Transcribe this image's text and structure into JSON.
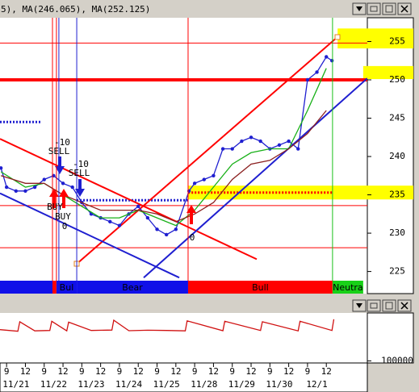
{
  "chart_data": [
    {
      "type": "line",
      "title": "5), MA(246.065), MA(252.125)",
      "xlim": [
        -0.35,
        19.18
      ],
      "ylim": [
        223.8,
        258.1
      ],
      "yticks": [
        225,
        230,
        235,
        240,
        245,
        250,
        255
      ],
      "xticks": [
        {
          "value": 0,
          "label": "9"
        },
        {
          "value": 1,
          "label": "12"
        },
        {
          "value": 2,
          "label": "9"
        },
        {
          "value": 3,
          "label": "12"
        },
        {
          "value": 4,
          "label": "9"
        },
        {
          "value": 5,
          "label": "12"
        },
        {
          "value": 6,
          "label": "9"
        },
        {
          "value": 7,
          "label": "12"
        },
        {
          "value": 8,
          "label": "9"
        },
        {
          "value": 9,
          "label": "12"
        },
        {
          "value": 10,
          "label": "9"
        },
        {
          "value": 11,
          "label": "12"
        },
        {
          "value": 12,
          "label": "9"
        },
        {
          "value": 13,
          "label": "12"
        },
        {
          "value": 14,
          "label": "9"
        },
        {
          "value": 15,
          "label": "12"
        },
        {
          "value": 16,
          "label": "9"
        },
        {
          "value": 17,
          "label": "12"
        }
      ],
      "date_ticks": [
        {
          "value": 0.5,
          "label": "11/21"
        },
        {
          "value": 2.5,
          "label": "11/22"
        },
        {
          "value": 4.5,
          "label": "11/23"
        },
        {
          "value": 6.5,
          "label": "11/24"
        },
        {
          "value": 8.5,
          "label": "11/25"
        },
        {
          "value": 10.5,
          "label": "11/28"
        },
        {
          "value": 12.5,
          "label": "11/29"
        },
        {
          "value": 14.5,
          "label": "11/30"
        },
        {
          "value": 16.5,
          "label": "12/1"
        }
      ],
      "series": [
        {
          "color": "#1f1fd0",
          "markers": true,
          "x": [
            -0.3,
            0,
            0.5,
            1,
            1.5,
            2,
            2.5,
            3,
            3.5,
            4,
            4.5,
            5,
            5.5,
            6,
            6.5,
            7,
            7.5,
            8,
            8.5,
            9,
            9.7,
            10,
            10.5,
            11,
            11.5,
            12,
            12.5,
            13,
            13.5,
            14,
            14.5,
            15,
            15.5,
            16,
            16.5,
            17,
            17.3
          ],
          "values": [
            238.5,
            236,
            235.5,
            235.5,
            236,
            237,
            237.5,
            236.5,
            236,
            234,
            232.5,
            232,
            231.5,
            231,
            232.5,
            233.5,
            232,
            230.5,
            229.8,
            230.5,
            235.5,
            236.5,
            237,
            237.5,
            241,
            241,
            242,
            242.5,
            242,
            241,
            241.5,
            242,
            241,
            250,
            251,
            253,
            252.5
          ]
        },
        {
          "color": "#18b018",
          "markers": false,
          "x": [
            -0.3,
            1,
            2,
            3,
            4,
            5,
            6,
            7,
            8,
            9,
            10,
            11,
            12,
            13,
            14,
            15,
            16,
            17
          ],
          "values": [
            238,
            236,
            236.5,
            235,
            233.5,
            232,
            232,
            233,
            232,
            231,
            233,
            236,
            239,
            240.5,
            241,
            241,
            246,
            251.5
          ]
        },
        {
          "color": "#8b2020",
          "markers": false,
          "x": [
            -0.3,
            1,
            2,
            3,
            4,
            5,
            6,
            7,
            8,
            9,
            10,
            11,
            12,
            13,
            14,
            15,
            16,
            17
          ],
          "values": [
            237.5,
            236.5,
            236.5,
            235,
            234,
            233,
            233,
            233,
            232.5,
            231.5,
            232.5,
            234,
            237,
            239,
            239.5,
            241,
            243,
            246
          ]
        }
      ],
      "bands": [
        {
          "x": 17.6,
          "values": [
            254.1,
            256.7
          ],
          "color": "#ffff00"
        },
        {
          "x": 18.96,
          "values": [
            250.1,
            251.8
          ],
          "color": "#ffff00"
        },
        {
          "x": 9.66,
          "values": [
            234.4,
            236.2
          ],
          "color": "#ffff00"
        }
      ],
      "hlines": [
        {
          "value": 254.8,
          "color": "#ff0000",
          "width": 1
        },
        {
          "value": 233.6,
          "color": "#ff0000",
          "width": 1
        },
        {
          "value": 228.1,
          "color": "#ff0000",
          "width": 1
        },
        {
          "value": 250,
          "color": "#ff0000",
          "width": 4
        }
      ],
      "dotted_lines": [
        {
          "x": [
            -0.35,
            1.8
          ],
          "value": 244.5,
          "color": "#1f1fd0"
        },
        {
          "x": [
            3.73,
            9.66
          ],
          "value": 234.3,
          "color": "#1f1fd0"
        },
        {
          "x": [
            9.66,
            17.3
          ],
          "value": 235.3,
          "color": "#ff0000"
        }
      ],
      "trendlines": [
        {
          "x": [
            -0.35,
            13.3
          ],
          "values": [
            242.3,
            226.6
          ],
          "color": "#ff0000"
        },
        {
          "x": [
            3.73,
            17.6
          ],
          "values": [
            226.0,
            255.6
          ],
          "color": "#ff0000"
        },
        {
          "x": [
            -0.35,
            9.18
          ],
          "values": [
            235.2,
            224.2
          ],
          "color": "#1f1fd0"
        },
        {
          "x": [
            7.29,
            19.18
          ],
          "values": [
            224.2,
            250.2
          ],
          "color": "#1f1fd0"
        }
      ],
      "vlines": [
        {
          "x": 2.44,
          "color": "#ff0000"
        },
        {
          "x": 2.65,
          "color": "#ff0000"
        },
        {
          "x": 2.78,
          "color": "#1f1fd0"
        },
        {
          "x": 3.73,
          "color": "#1f1fd0"
        },
        {
          "x": 9.65,
          "color": "#ff0000"
        },
        {
          "x": 17.33,
          "color": "#18c018"
        }
      ],
      "regimes": [
        {
          "x": [
            -0.35,
            2.44
          ],
          "color": "#1010e8"
        },
        {
          "x": [
            2.44,
            2.65
          ],
          "color": "#ff0000"
        },
        {
          "label": "Bul",
          "x": [
            2.65,
            3.73
          ],
          "color": "#1010e8"
        },
        {
          "label": "Bear",
          "x": [
            3.73,
            9.65
          ],
          "color": "#1010e8"
        },
        {
          "label": "Bull",
          "x": [
            9.65,
            17.33
          ],
          "color": "#ff0000"
        },
        {
          "label": "Neutra",
          "x": [
            17.33,
            18.96
          ],
          "color": "#18d018"
        }
      ],
      "annotations": [
        "-10",
        "SELL",
        "-10",
        "SELL",
        "BUY",
        "BUY",
        "0",
        "0"
      ]
    },
    {
      "type": "line",
      "xlim": [
        -0.35,
        19.18
      ],
      "ylim": [
        90000,
        330000
      ],
      "yticks": [
        100000
      ],
      "series": [
        {
          "color": "#d01010",
          "x": [
            -0.35,
            0.6,
            0.7,
            1.5,
            2.3,
            2.4,
            3.2,
            3.3,
            4.5,
            5.6,
            5.7,
            6.5,
            7.5,
            8.5,
            9.5,
            9.6,
            11.5,
            11.6,
            13.5,
            13.6,
            15.5,
            15.6,
            17.3,
            17.4
          ],
          "values": [
            250000,
            242000,
            288000,
            244000,
            246000,
            290000,
            244000,
            286000,
            246000,
            248000,
            295000,
            245000,
            247000,
            246000,
            244000,
            292000,
            245000,
            290000,
            246000,
            288000,
            244000,
            290000,
            246000,
            300000
          ]
        }
      ]
    }
  ]
}
